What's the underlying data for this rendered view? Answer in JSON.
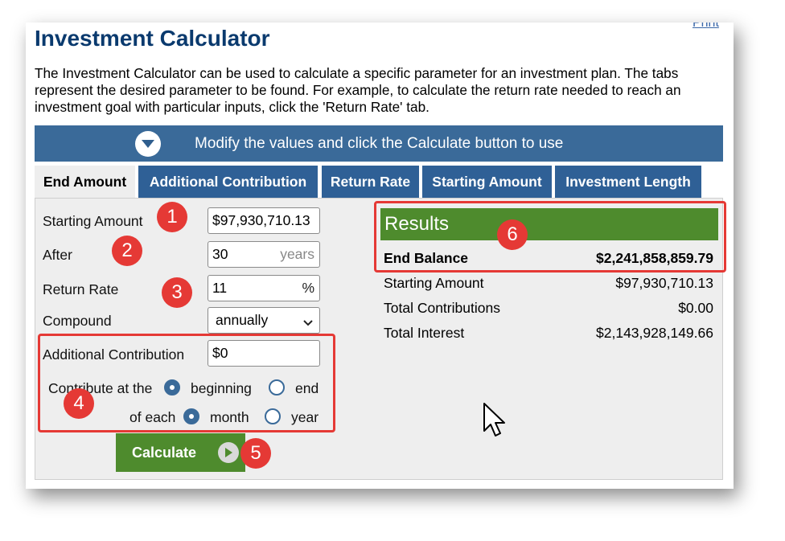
{
  "header": {
    "print_link": "Print",
    "title": "Investment Calculator",
    "description": "The Investment Calculator can be used to calculate a specific parameter for an investment plan. The tabs represent the desired parameter to be found. For example, to calculate the return rate needed to reach an investment goal with particular inputs, click the 'Return Rate' tab."
  },
  "banner": {
    "text": "Modify the values and click the Calculate button to use",
    "icon": "chevron-down-circle-icon"
  },
  "tabs": [
    {
      "label": "End Amount",
      "active": true
    },
    {
      "label": "Additional Contribution",
      "active": false
    },
    {
      "label": "Return Rate",
      "active": false
    },
    {
      "label": "Starting Amount",
      "active": false
    },
    {
      "label": "Investment Length",
      "active": false
    }
  ],
  "form": {
    "starting_amount": {
      "label": "Starting Amount",
      "value": "$97,930,710.13"
    },
    "after": {
      "label": "After",
      "value": "30",
      "suffix": "years"
    },
    "return_rate": {
      "label": "Return Rate",
      "value": "11",
      "suffix": "%"
    },
    "compound": {
      "label": "Compound",
      "value": "annually"
    },
    "additional_contribution": {
      "label": "Additional Contribution",
      "value": "$0"
    },
    "contribute_at": {
      "label": "Contribute at the",
      "options": [
        "beginning",
        "end"
      ],
      "selected": "beginning"
    },
    "of_each": {
      "label": "of each",
      "options": [
        "month",
        "year"
      ],
      "selected": "month"
    },
    "calculate_button": "Calculate"
  },
  "results": {
    "title": "Results",
    "end_balance": {
      "label": "End Balance",
      "value": "$2,241,858,859.79"
    },
    "rows": [
      {
        "label": "Starting Amount",
        "value": "$97,930,710.13"
      },
      {
        "label": "Total Contributions",
        "value": "$0.00"
      },
      {
        "label": "Total Interest",
        "value": "$2,143,928,149.66"
      }
    ]
  },
  "annotations": [
    "1",
    "2",
    "3",
    "4",
    "5",
    "6"
  ],
  "colors": {
    "title": "#0a3a6e",
    "tab": "#2f6096",
    "banner": "#3a6a99",
    "green": "#4e8b2d",
    "annotation": "#e53935"
  }
}
